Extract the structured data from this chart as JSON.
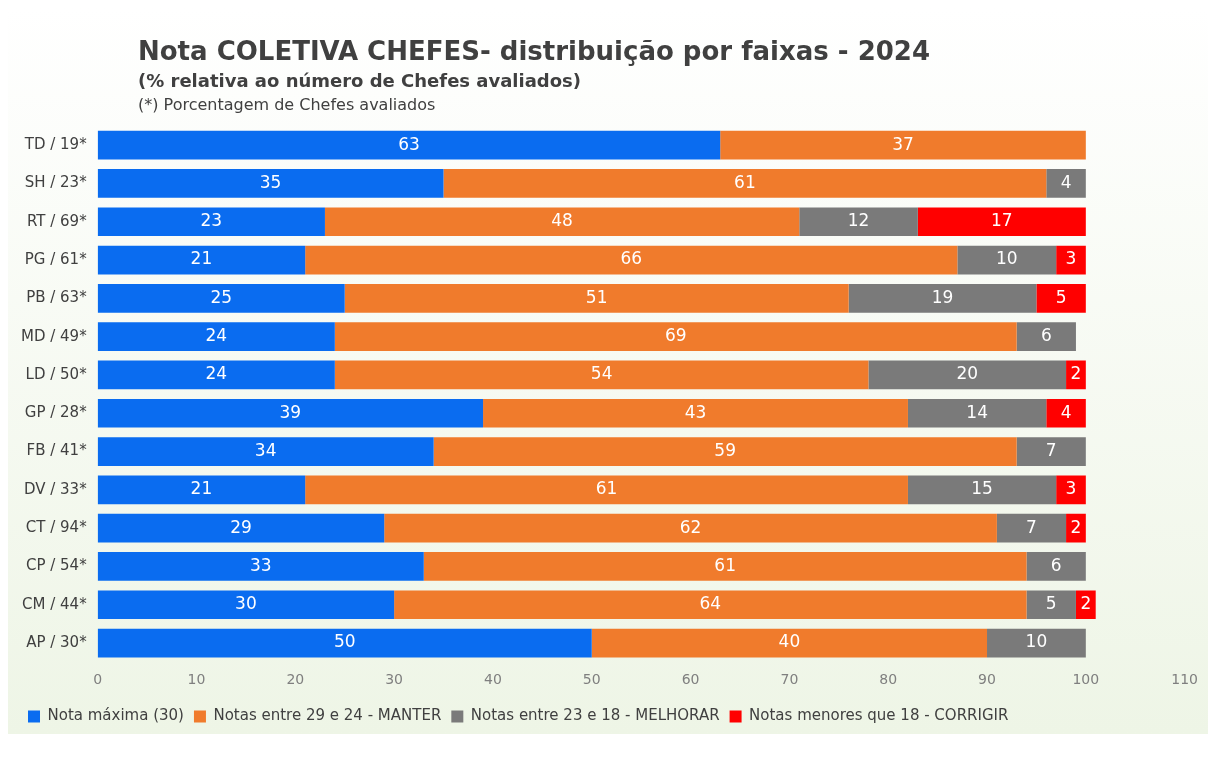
{
  "chart_data": {
    "type": "bar",
    "orientation": "horizontal",
    "stacked": true,
    "title": "Nota COLETIVA CHEFES- distribuição por faixas - 2024",
    "subtitle": "(% relativa ao número de Chefes avaliados)",
    "annotations": [
      "(*) Porcentagem de Chefes avaliados"
    ],
    "categories": [
      "TD / 19*",
      "SH / 23*",
      "RT / 69*",
      "PG / 61*",
      "PB / 63*",
      "MD / 49*",
      "LD / 50*",
      "GP / 28*",
      "FB / 41*",
      "DV / 33*",
      "CT / 94*",
      "CP / 54*",
      "CM / 44*",
      "AP / 30*"
    ],
    "series": [
      {
        "name": "Nota máxima (30)",
        "color": "#0a6cf0",
        "values": [
          63,
          35,
          23,
          21,
          25,
          24,
          24,
          39,
          34,
          21,
          29,
          33,
          30,
          50
        ]
      },
      {
        "name": "Notas entre 29 e 24 - MANTER",
        "color": "#f07b2c",
        "values": [
          37,
          61,
          48,
          66,
          51,
          69,
          54,
          43,
          59,
          61,
          62,
          61,
          64,
          40
        ]
      },
      {
        "name": "Notas entre 23 e 18 - MELHORAR",
        "color": "#7a7a7a",
        "values": [
          null,
          4,
          12,
          10,
          19,
          6,
          20,
          14,
          7,
          15,
          7,
          6,
          5,
          10
        ]
      },
      {
        "name": "Notas menores que 18 - CORRIGIR",
        "color": "#ff0000",
        "values": [
          null,
          null,
          17,
          3,
          5,
          null,
          2,
          4,
          null,
          3,
          2,
          null,
          2,
          null
        ]
      }
    ],
    "xlim": [
      0,
      110
    ],
    "xticks": [
      0,
      10,
      20,
      30,
      40,
      50,
      60,
      70,
      80,
      90,
      100,
      110
    ],
    "grid": false,
    "legend": "bottom",
    "data_labels": true
  }
}
